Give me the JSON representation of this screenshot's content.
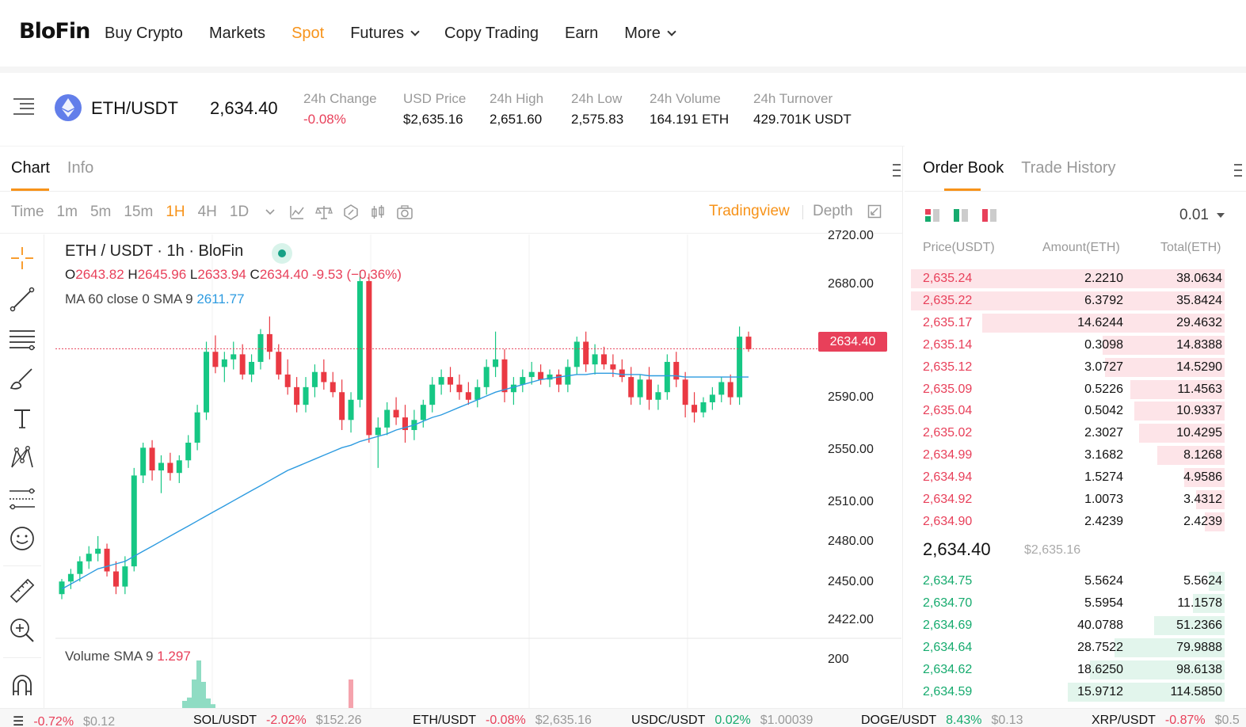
{
  "nav": {
    "logo": "BloFin",
    "items": [
      {
        "label": "Buy Crypto",
        "active": false,
        "dropdown": false
      },
      {
        "label": "Markets",
        "active": false,
        "dropdown": false
      },
      {
        "label": "Spot",
        "active": true,
        "dropdown": false
      },
      {
        "label": "Futures",
        "active": false,
        "dropdown": true
      },
      {
        "label": "Copy Trading",
        "active": false,
        "dropdown": false
      },
      {
        "label": "Earn",
        "active": false,
        "dropdown": false
      },
      {
        "label": "More",
        "active": false,
        "dropdown": true
      }
    ]
  },
  "ticker": {
    "pair": "ETH/USDT",
    "last_price": "2,634.40",
    "stats": [
      {
        "label": "24h Change",
        "value": "-0.08%",
        "color": "red"
      },
      {
        "label": "USD Price",
        "value": "$2,635.16",
        "color": "default"
      },
      {
        "label": "24h High",
        "value": "2,651.60",
        "color": "default"
      },
      {
        "label": "24h Low",
        "value": "2,575.83",
        "color": "default"
      },
      {
        "label": "24h Volume",
        "value": "164.191 ETH",
        "color": "default"
      },
      {
        "label": "24h Turnover",
        "value": "429.701K USDT",
        "color": "default"
      }
    ]
  },
  "chart_panel": {
    "tabs": [
      "Chart",
      "Info"
    ],
    "active_tab": "Chart",
    "timeframes": [
      "Time",
      "1m",
      "5m",
      "15m",
      "1H",
      "4H",
      "1D"
    ],
    "active_timeframe": "1H",
    "mode_tradingview": "Tradingview",
    "mode_depth": "Depth"
  },
  "chart_data": {
    "type": "candlestick",
    "title": "ETH / USDT · 1h · BloFin",
    "ohlc_legend": {
      "o_label": "O",
      "o": "2643.82",
      "h_label": "H",
      "h": "2645.96",
      "l_label": "L",
      "l": "2633.94",
      "c_label": "C",
      "c": "2634.40",
      "change": "-9.53 (−0.36%)"
    },
    "ma_legend": {
      "label": "MA 60 close 0 SMA 9",
      "value": "2611.77"
    },
    "volume_legend": {
      "label": "Volume SMA 9",
      "value": "1.297"
    },
    "y_ticks": [
      "2720.00",
      "2680.00",
      "2590.00",
      "2550.00",
      "2510.00",
      "2480.00",
      "2450.00",
      "2422.00"
    ],
    "volume_y_ticks": [
      "200"
    ],
    "last_price_tag": "2634.40",
    "ylim": [
      2405,
      2725
    ],
    "candles": [
      [
        2440,
        2452,
        2436,
        2450
      ],
      [
        2450,
        2460,
        2444,
        2456
      ],
      [
        2456,
        2470,
        2450,
        2466
      ],
      [
        2466,
        2478,
        2460,
        2472
      ],
      [
        2472,
        2486,
        2466,
        2476
      ],
      [
        2476,
        2480,
        2454,
        2458
      ],
      [
        2458,
        2466,
        2440,
        2446
      ],
      [
        2446,
        2470,
        2440,
        2462
      ],
      [
        2462,
        2540,
        2458,
        2534
      ],
      [
        2534,
        2560,
        2528,
        2556
      ],
      [
        2556,
        2562,
        2530,
        2538
      ],
      [
        2538,
        2550,
        2520,
        2544
      ],
      [
        2544,
        2552,
        2530,
        2536
      ],
      [
        2536,
        2550,
        2528,
        2546
      ],
      [
        2546,
        2566,
        2540,
        2560
      ],
      [
        2560,
        2590,
        2554,
        2584
      ],
      [
        2584,
        2640,
        2578,
        2632
      ],
      [
        2632,
        2645,
        2615,
        2620
      ],
      [
        2620,
        2632,
        2608,
        2626
      ],
      [
        2626,
        2640,
        2618,
        2630
      ],
      [
        2630,
        2638,
        2610,
        2614
      ],
      [
        2614,
        2630,
        2608,
        2624
      ],
      [
        2624,
        2650,
        2618,
        2646
      ],
      [
        2646,
        2660,
        2626,
        2632
      ],
      [
        2632,
        2638,
        2610,
        2614
      ],
      [
        2614,
        2626,
        2598,
        2604
      ],
      [
        2604,
        2612,
        2584,
        2590
      ],
      [
        2590,
        2612,
        2584,
        2604
      ],
      [
        2604,
        2622,
        2596,
        2616
      ],
      [
        2616,
        2626,
        2602,
        2608
      ],
      [
        2608,
        2616,
        2596,
        2600
      ],
      [
        2600,
        2610,
        2570,
        2578
      ],
      [
        2578,
        2600,
        2568,
        2594
      ],
      [
        2594,
        2696,
        2588,
        2688
      ],
      [
        2688,
        2694,
        2560,
        2566
      ],
      [
        2566,
        2580,
        2540,
        2572
      ],
      [
        2572,
        2592,
        2566,
        2586
      ],
      [
        2586,
        2596,
        2574,
        2580
      ],
      [
        2580,
        2590,
        2560,
        2570
      ],
      [
        2570,
        2586,
        2562,
        2578
      ],
      [
        2578,
        2594,
        2572,
        2590
      ],
      [
        2590,
        2612,
        2584,
        2606
      ],
      [
        2606,
        2618,
        2598,
        2612
      ],
      [
        2612,
        2620,
        2600,
        2606
      ],
      [
        2606,
        2614,
        2594,
        2600
      ],
      [
        2600,
        2608,
        2590,
        2594
      ],
      [
        2594,
        2610,
        2588,
        2604
      ],
      [
        2604,
        2626,
        2598,
        2620
      ],
      [
        2620,
        2648,
        2612,
        2626
      ],
      [
        2626,
        2634,
        2592,
        2600
      ],
      [
        2600,
        2612,
        2590,
        2606
      ],
      [
        2606,
        2618,
        2600,
        2612
      ],
      [
        2612,
        2624,
        2606,
        2616
      ],
      [
        2616,
        2622,
        2606,
        2610
      ],
      [
        2610,
        2618,
        2604,
        2614
      ],
      [
        2614,
        2618,
        2600,
        2606
      ],
      [
        2606,
        2626,
        2600,
        2620
      ],
      [
        2620,
        2644,
        2614,
        2640
      ],
      [
        2640,
        2648,
        2616,
        2622
      ],
      [
        2622,
        2638,
        2614,
        2630
      ],
      [
        2630,
        2636,
        2618,
        2622
      ],
      [
        2622,
        2630,
        2612,
        2618
      ],
      [
        2618,
        2626,
        2608,
        2612
      ],
      [
        2612,
        2620,
        2590,
        2596
      ],
      [
        2596,
        2614,
        2590,
        2610
      ],
      [
        2610,
        2620,
        2586,
        2594
      ],
      [
        2594,
        2606,
        2586,
        2600
      ],
      [
        2600,
        2630,
        2594,
        2624
      ],
      [
        2624,
        2632,
        2604,
        2610
      ],
      [
        2610,
        2616,
        2580,
        2590
      ],
      [
        2590,
        2600,
        2576,
        2584
      ],
      [
        2584,
        2596,
        2580,
        2592
      ],
      [
        2592,
        2604,
        2586,
        2598
      ],
      [
        2598,
        2612,
        2592,
        2608
      ],
      [
        2608,
        2614,
        2590,
        2596
      ],
      [
        2596,
        2652,
        2590,
        2644
      ],
      [
        2644,
        2648,
        2632,
        2634
      ]
    ],
    "ma60": [
      2444,
      2448,
      2452,
      2456,
      2460,
      2462,
      2464,
      2466,
      2470,
      2474,
      2478,
      2482,
      2486,
      2490,
      2494,
      2498,
      2502,
      2506,
      2510,
      2514,
      2518,
      2522,
      2526,
      2530,
      2534,
      2538,
      2541,
      2544,
      2547,
      2550,
      2553,
      2556,
      2558,
      2561,
      2563,
      2565,
      2567,
      2570,
      2572,
      2574,
      2577,
      2580,
      2582,
      2585,
      2588,
      2591,
      2594,
      2597,
      2600,
      2602,
      2604,
      2606,
      2608,
      2610,
      2611,
      2612,
      2613,
      2614,
      2614,
      2615,
      2615,
      2615,
      2614,
      2614,
      2614,
      2613,
      2613,
      2613,
      2613,
      2612,
      2612,
      2612,
      2612,
      2612,
      2612,
      2612,
      2612
    ]
  },
  "orderbook": {
    "tabs": [
      "Order Book",
      "Trade History"
    ],
    "active_tab": "Order Book",
    "precision": "0.01",
    "headers": {
      "price": "Price(USDT)",
      "amount": "Amount(ETH)",
      "total": "Total(ETH)"
    },
    "asks": [
      {
        "price": "2,635.24",
        "amount": "2.2210",
        "total": "38.0634",
        "depth": 1.0
      },
      {
        "price": "2,635.22",
        "amount": "6.3792",
        "total": "35.8424",
        "depth": 1.0
      },
      {
        "price": "2,635.17",
        "amount": "14.6244",
        "total": "29.4632",
        "depth": 0.774
      },
      {
        "price": "2,635.14",
        "amount": "0.3098",
        "total": "14.8388",
        "depth": 0.39
      },
      {
        "price": "2,635.12",
        "amount": "3.0727",
        "total": "14.5290",
        "depth": 0.382
      },
      {
        "price": "2,635.09",
        "amount": "0.5226",
        "total": "11.4563",
        "depth": 0.301
      },
      {
        "price": "2,635.04",
        "amount": "0.5042",
        "total": "10.9337",
        "depth": 0.287
      },
      {
        "price": "2,635.02",
        "amount": "2.3027",
        "total": "10.4295",
        "depth": 0.274
      },
      {
        "price": "2,634.99",
        "amount": "3.1682",
        "total": "8.1268",
        "depth": 0.214
      },
      {
        "price": "2,634.94",
        "amount": "1.5274",
        "total": "4.9586",
        "depth": 0.13
      },
      {
        "price": "2,634.92",
        "amount": "1.0073",
        "total": "3.4312",
        "depth": 0.09
      },
      {
        "price": "2,634.90",
        "amount": "2.4239",
        "total": "2.4239",
        "depth": 0.064
      }
    ],
    "mid_price": "2,634.40",
    "mid_usd": "$2,635.16",
    "bids": [
      {
        "price": "2,634.75",
        "amount": "5.5624",
        "total": "5.5624",
        "depth": 0.05
      },
      {
        "price": "2,634.70",
        "amount": "5.5954",
        "total": "11.1578",
        "depth": 0.1
      },
      {
        "price": "2,634.69",
        "amount": "40.0788",
        "total": "51.2366",
        "depth": 0.225
      },
      {
        "price": "2,634.64",
        "amount": "28.7522",
        "total": "79.9888",
        "depth": 0.35
      },
      {
        "price": "2,634.62",
        "amount": "18.6250",
        "total": "98.6138",
        "depth": 0.43
      },
      {
        "price": "2,634.59",
        "amount": "15.9712",
        "total": "114.5850",
        "depth": 0.5
      }
    ]
  },
  "bottom_ticker": [
    {
      "symbol": "",
      "change": "-0.72%",
      "value": "$0.12",
      "color": "red"
    },
    {
      "symbol": "SOL/USDT",
      "change": "-2.02%",
      "value": "$152.26",
      "color": "red"
    },
    {
      "symbol": "ETH/USDT",
      "change": "-0.08%",
      "value": "$2,635.16",
      "color": "red"
    },
    {
      "symbol": "USDC/USDT",
      "change": "0.02%",
      "value": "$1.00039",
      "color": "green"
    },
    {
      "symbol": "DOGE/USDT",
      "change": "8.43%",
      "value": "$0.13",
      "color": "green"
    },
    {
      "symbol": "XRP/USDT",
      "change": "-0.87%",
      "value": "$0.5",
      "color": "red"
    }
  ],
  "colors": {
    "accent": "#f7931a",
    "up": "#16ab6e",
    "down": "#e8405a",
    "ma": "#2d9be0"
  }
}
